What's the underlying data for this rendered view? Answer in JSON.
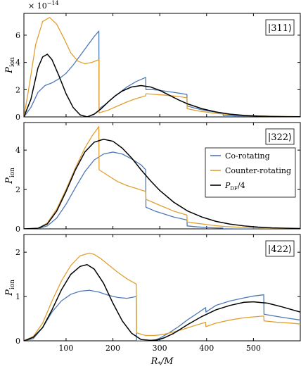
{
  "chart_data": [
    {
      "type": "line",
      "state_label": "|311⟩",
      "exponent_label": "× 10",
      "exponent_power": "−14",
      "ylabel": "P",
      "ylabel_sub": "ion",
      "xlabel": "",
      "xlim": [
        10,
        600
      ],
      "ylim": [
        0,
        7.6
      ],
      "yticks": [
        0,
        2,
        4,
        6
      ],
      "series": [
        {
          "key": "co",
          "color": "#4e79b5",
          "x": [
            10,
            25,
            40,
            55,
            70,
            85,
            100,
            115,
            130,
            145,
            160,
            170,
            170.5,
            185,
            200,
            215,
            230,
            250,
            270,
            270.5,
            285,
            300,
            320,
            340,
            358,
            358.5,
            380,
            400,
            420,
            435,
            435.5,
            460,
            500,
            540,
            600
          ],
          "y": [
            0,
            0.7,
            1.8,
            2.3,
            2.5,
            2.8,
            3.2,
            3.8,
            4.5,
            5.2,
            5.9,
            6.3,
            0.6,
            0.95,
            1.4,
            1.8,
            2.2,
            2.6,
            2.9,
            2.0,
            2.0,
            1.95,
            1.85,
            1.75,
            1.65,
            0.8,
            0.6,
            0.45,
            0.35,
            0.25,
            0.1,
            0.08,
            0.06,
            0.04,
            0.02
          ]
        },
        {
          "key": "counter",
          "color": "#e0a030",
          "x": [
            10,
            20,
            35,
            50,
            65,
            80,
            95,
            110,
            125,
            140,
            155,
            170,
            170.5,
            190,
            210,
            230,
            250,
            270,
            270.5,
            290,
            310,
            340,
            358,
            358.5,
            380,
            400,
            420,
            440,
            470,
            500,
            540,
            600
          ],
          "y": [
            0,
            2.0,
            5.3,
            7.0,
            7.3,
            6.8,
            5.8,
            4.7,
            4.1,
            3.9,
            4.0,
            4.2,
            0.3,
            0.5,
            0.8,
            1.1,
            1.35,
            1.55,
            1.7,
            1.65,
            1.6,
            1.5,
            1.4,
            0.6,
            0.45,
            0.35,
            0.25,
            0.2,
            0.13,
            0.08,
            0.04,
            0.02
          ]
        },
        {
          "key": "df",
          "color": "#000000",
          "x": [
            10,
            25,
            40,
            50,
            60,
            70,
            85,
            100,
            115,
            130,
            145,
            160,
            175,
            190,
            205,
            220,
            240,
            260,
            280,
            300,
            320,
            340,
            360,
            390,
            420,
            450,
            480,
            510,
            540,
            570,
            600
          ],
          "y": [
            0,
            1.3,
            3.6,
            4.4,
            4.6,
            4.2,
            3.0,
            1.7,
            0.7,
            0.15,
            0.0,
            0.2,
            0.6,
            1.1,
            1.55,
            1.9,
            2.2,
            2.3,
            2.2,
            1.95,
            1.6,
            1.25,
            0.95,
            0.6,
            0.36,
            0.2,
            0.11,
            0.06,
            0.03,
            0.015,
            0.01
          ]
        }
      ]
    },
    {
      "type": "line",
      "state_label": "|322⟩",
      "ylabel": "P",
      "ylabel_sub": "ion",
      "xlabel": "",
      "xlim": [
        10,
        600
      ],
      "ylim": [
        0,
        5.4
      ],
      "yticks": [
        0,
        2,
        4
      ],
      "legend": [
        {
          "label": "Co-rotating",
          "color": "#4e79b5"
        },
        {
          "label": "Counter-rotating",
          "color": "#e0a030"
        },
        {
          "label": "P",
          "sub": "DF",
          "suffix": "/4",
          "color": "#000000"
        }
      ],
      "series": [
        {
          "key": "co",
          "color": "#4e79b5",
          "x": [
            10,
            40,
            60,
            80,
            100,
            120,
            140,
            160,
            180,
            200,
            220,
            240,
            260,
            270,
            270.5,
            290,
            310,
            330,
            358,
            358.5,
            380,
            400,
            420,
            435,
            435.5,
            460,
            600
          ],
          "y": [
            0,
            0.01,
            0.15,
            0.55,
            1.25,
            2.1,
            2.9,
            3.5,
            3.8,
            3.9,
            3.8,
            3.55,
            3.25,
            3.0,
            1.1,
            0.9,
            0.75,
            0.6,
            0.45,
            0.15,
            0.1,
            0.07,
            0.05,
            0.04,
            0.01,
            0.0,
            0.0
          ]
        },
        {
          "key": "counter",
          "color": "#e0a030",
          "x": [
            10,
            40,
            60,
            80,
            100,
            120,
            140,
            155,
            170,
            170.5,
            190,
            210,
            230,
            250,
            270,
            270.5,
            290,
            310,
            330,
            358,
            358.5,
            380,
            400,
            420,
            440,
            470,
            500,
            540,
            600
          ],
          "y": [
            0,
            0.02,
            0.3,
            1.0,
            2.0,
            3.1,
            4.1,
            4.7,
            5.2,
            3.0,
            2.7,
            2.4,
            2.2,
            2.05,
            1.9,
            1.5,
            1.3,
            1.1,
            0.9,
            0.7,
            0.35,
            0.28,
            0.22,
            0.16,
            0.12,
            0.08,
            0.05,
            0.03,
            0.01
          ]
        },
        {
          "key": "df",
          "color": "#000000",
          "x": [
            10,
            40,
            60,
            80,
            100,
            120,
            140,
            160,
            180,
            200,
            220,
            240,
            260,
            280,
            300,
            330,
            360,
            390,
            420,
            450,
            480,
            510,
            540,
            570,
            600
          ],
          "y": [
            0,
            0.03,
            0.25,
            0.9,
            1.9,
            3.0,
            3.9,
            4.4,
            4.55,
            4.45,
            4.1,
            3.6,
            3.0,
            2.45,
            1.95,
            1.35,
            0.9,
            0.6,
            0.38,
            0.24,
            0.15,
            0.09,
            0.05,
            0.03,
            0.02
          ]
        }
      ]
    },
    {
      "type": "line",
      "state_label": "|422⟩",
      "ylabel": "P",
      "ylabel_sub": "ion",
      "xlabel": "R",
      "xlabel_sub": "*",
      "xlabel_suffix": "/M",
      "xlim": [
        10,
        600
      ],
      "ylim": [
        0,
        2.4
      ],
      "yticks": [
        0,
        1,
        2
      ],
      "xticks": [
        100,
        200,
        300,
        400,
        500
      ],
      "series": [
        {
          "key": "co",
          "color": "#4e79b5",
          "x": [
            10,
            30,
            50,
            70,
            90,
            110,
            130,
            150,
            170,
            190,
            210,
            230,
            250,
            250.5,
            270,
            290,
            300,
            320,
            340,
            360,
            380,
            398,
            398.5,
            420,
            450,
            480,
            500,
            522,
            522.5,
            550,
            580,
            600
          ],
          "y": [
            0,
            0.05,
            0.3,
            0.65,
            0.9,
            1.05,
            1.12,
            1.14,
            1.1,
            1.03,
            0.98,
            0.96,
            1.0,
            0.0,
            0.0,
            0.02,
            0.06,
            0.18,
            0.32,
            0.48,
            0.62,
            0.75,
            0.65,
            0.8,
            0.9,
            0.97,
            1.01,
            1.04,
            0.6,
            0.55,
            0.5,
            0.47
          ]
        },
        {
          "key": "counter",
          "color": "#e0a030",
          "x": [
            10,
            30,
            50,
            70,
            90,
            110,
            130,
            150,
            160,
            175,
            190,
            210,
            230,
            250,
            250.5,
            270,
            290,
            310,
            330,
            350,
            370,
            398,
            398.5,
            420,
            450,
            480,
            500,
            522,
            522.5,
            550,
            580,
            600
          ],
          "y": [
            0,
            0.1,
            0.4,
            0.9,
            1.35,
            1.7,
            1.92,
            1.98,
            1.95,
            1.85,
            1.72,
            1.55,
            1.4,
            1.28,
            0.18,
            0.12,
            0.12,
            0.15,
            0.2,
            0.26,
            0.33,
            0.42,
            0.32,
            0.4,
            0.47,
            0.52,
            0.54,
            0.56,
            0.45,
            0.42,
            0.4,
            0.38
          ]
        },
        {
          "key": "df",
          "color": "#000000",
          "x": [
            10,
            30,
            50,
            70,
            90,
            110,
            130,
            145,
            160,
            180,
            200,
            220,
            240,
            260,
            280,
            295,
            310,
            330,
            360,
            390,
            420,
            450,
            480,
            500,
            530,
            560,
            600
          ],
          "y": [
            0,
            0.08,
            0.3,
            0.7,
            1.15,
            1.5,
            1.68,
            1.72,
            1.62,
            1.3,
            0.85,
            0.45,
            0.17,
            0.03,
            0.01,
            0.02,
            0.07,
            0.17,
            0.37,
            0.55,
            0.7,
            0.8,
            0.87,
            0.88,
            0.85,
            0.77,
            0.65
          ]
        }
      ]
    }
  ]
}
